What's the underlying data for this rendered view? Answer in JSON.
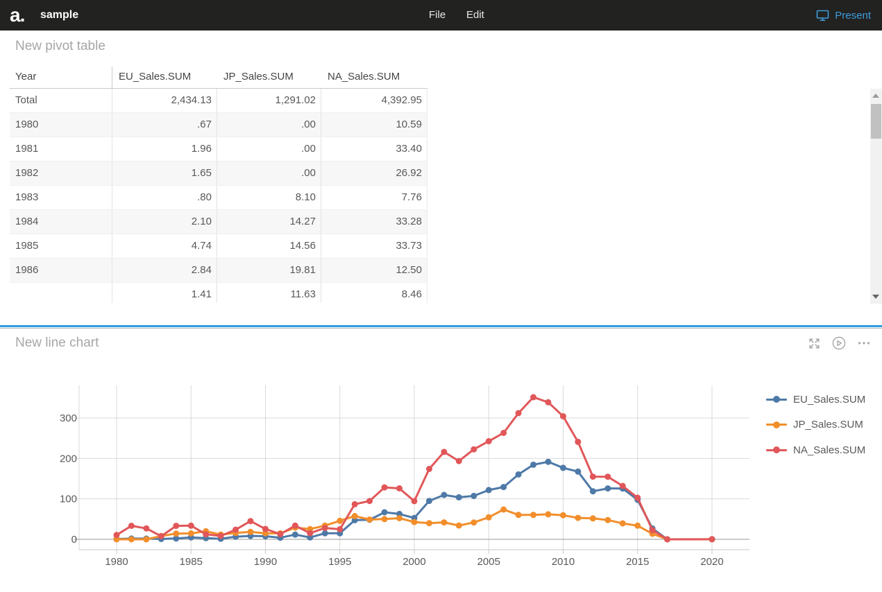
{
  "topbar": {
    "logo": "a.",
    "title": "sample",
    "menus": [
      {
        "label": "File"
      },
      {
        "label": "Edit"
      }
    ],
    "present_label": "Present",
    "present_color": "#3e9edd"
  },
  "pivot": {
    "title": "New pivot table",
    "columns": [
      "Year",
      "EU_Sales.SUM",
      "JP_Sales.SUM",
      "NA_Sales.SUM"
    ],
    "rows": [
      {
        "year": "Total",
        "values": [
          "2,434.13",
          "1,291.02",
          "4,392.95"
        ]
      },
      {
        "year": "1980",
        "values": [
          ".67",
          ".00",
          "10.59"
        ]
      },
      {
        "year": "1981",
        "values": [
          "1.96",
          ".00",
          "33.40"
        ]
      },
      {
        "year": "1982",
        "values": [
          "1.65",
          ".00",
          "26.92"
        ]
      },
      {
        "year": "1983",
        "values": [
          ".80",
          "8.10",
          "7.76"
        ]
      },
      {
        "year": "1984",
        "values": [
          "2.10",
          "14.27",
          "33.28"
        ]
      },
      {
        "year": "1985",
        "values": [
          "4.74",
          "14.56",
          "33.73"
        ]
      },
      {
        "year": "1986",
        "values": [
          "2.84",
          "19.81",
          "12.50"
        ]
      },
      {
        "year": "",
        "values": [
          "1.41",
          "11.63",
          "8.46"
        ]
      }
    ]
  },
  "chart_section": {
    "title": "New line chart",
    "icons": [
      "expand-icon",
      "play-icon",
      "more-icon"
    ]
  },
  "chart_data": {
    "type": "line",
    "title": "New line chart",
    "xlabel": "",
    "ylabel": "",
    "x": [
      1980,
      1981,
      1982,
      1983,
      1984,
      1985,
      1986,
      1987,
      1988,
      1989,
      1990,
      1991,
      1992,
      1993,
      1994,
      1995,
      1996,
      1997,
      1998,
      1999,
      2000,
      2001,
      2002,
      2003,
      2004,
      2005,
      2006,
      2007,
      2008,
      2009,
      2010,
      2011,
      2012,
      2013,
      2014,
      2015,
      2016,
      2017,
      2020
    ],
    "series": [
      {
        "name": "EU_Sales.SUM",
        "color": "#4e79a7",
        "values": [
          0.67,
          1.96,
          1.65,
          0.8,
          2.1,
          4.74,
          2.84,
          1.41,
          6.59,
          8.44,
          7.63,
          3.95,
          11.71,
          4.65,
          14.88,
          14.9,
          47.26,
          48.32,
          66.9,
          62.67,
          52.75,
          94.89,
          109.74,
          103.81,
          107.32,
          121.94,
          129.24,
          160.5,
          184.4,
          191.59,
          176.73,
          167.44,
          118.78,
          125.8,
          125.65,
          97.71,
          26.76,
          0.0,
          0.0
        ]
      },
      {
        "name": "JP_Sales.SUM",
        "color": "#f28e2b",
        "values": [
          0.0,
          0.0,
          0.0,
          8.1,
          14.27,
          14.56,
          19.81,
          11.63,
          15.76,
          18.36,
          14.88,
          14.78,
          28.91,
          25.33,
          33.99,
          45.75,
          57.44,
          48.87,
          50.04,
          52.34,
          42.77,
          39.86,
          41.76,
          34.2,
          41.65,
          54.28,
          73.73,
          60.29,
          60.26,
          61.89,
          59.49,
          53.04,
          51.74,
          47.59,
          39.46,
          33.72,
          13.7,
          0.05,
          0.0
        ]
      },
      {
        "name": "NA_Sales.SUM",
        "color": "#e15759",
        "values": [
          10.59,
          33.4,
          26.92,
          7.76,
          33.28,
          33.73,
          12.5,
          8.46,
          23.87,
          45.15,
          25.46,
          12.76,
          33.87,
          15.12,
          28.15,
          24.82,
          86.76,
          94.75,
          128.36,
          126.06,
          94.49,
          173.98,
          216.19,
          193.59,
          222.59,
          242.61,
          263.12,
          312.05,
          351.44,
          338.85,
          304.24,
          241.06,
          154.96,
          154.77,
          131.97,
          102.82,
          22.66,
          0.0,
          0.27
        ]
      }
    ],
    "xticks": [
      1980,
      1985,
      1990,
      1995,
      2000,
      2005,
      2010,
      2015,
      2020
    ],
    "yticks": [
      0,
      100,
      200,
      300
    ],
    "xlim": [
      1977.5,
      2022.5
    ],
    "ylim": [
      0,
      380
    ],
    "grid": true,
    "legend_position": "right",
    "grid_color": "#d9d9d9",
    "zero_line_color": "#979797",
    "axis_label_color": "#595959"
  }
}
